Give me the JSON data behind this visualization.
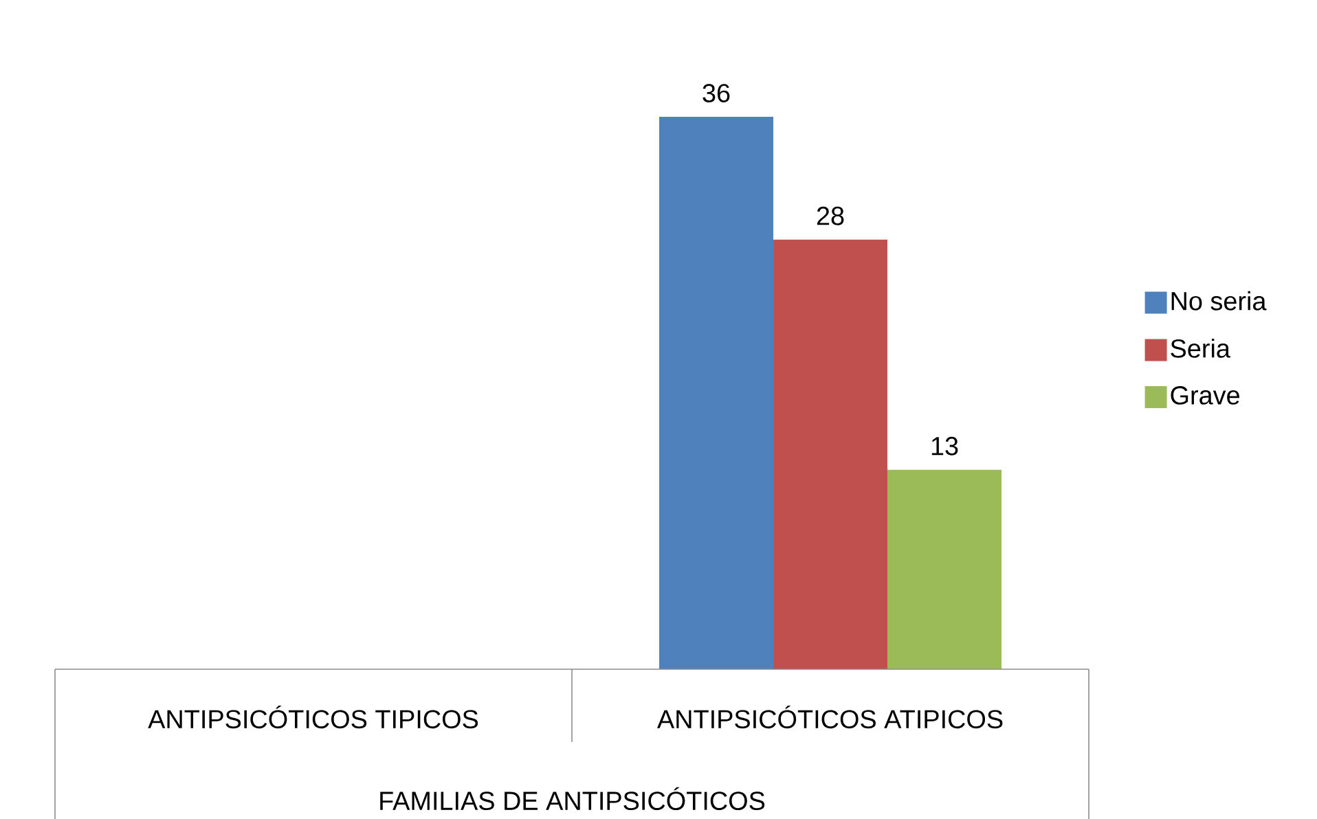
{
  "chart_data": {
    "type": "bar",
    "xlabel": "FAMILIAS DE ANTIPSICÓTICOS",
    "categories": [
      "ANTIPSICÓTICOS TIPICOS",
      "ANTIPSICÓTICOS ATIPICOS"
    ],
    "series": [
      {
        "name": "No seria",
        "color": "#4f81bd",
        "values": [
          null,
          36
        ]
      },
      {
        "name": "Seria",
        "color": "#c0504d",
        "values": [
          null,
          28
        ]
      },
      {
        "name": "Grave",
        "color": "#9bbb59",
        "values": [
          null,
          13
        ]
      }
    ],
    "data_labels": true,
    "legend": "right"
  }
}
